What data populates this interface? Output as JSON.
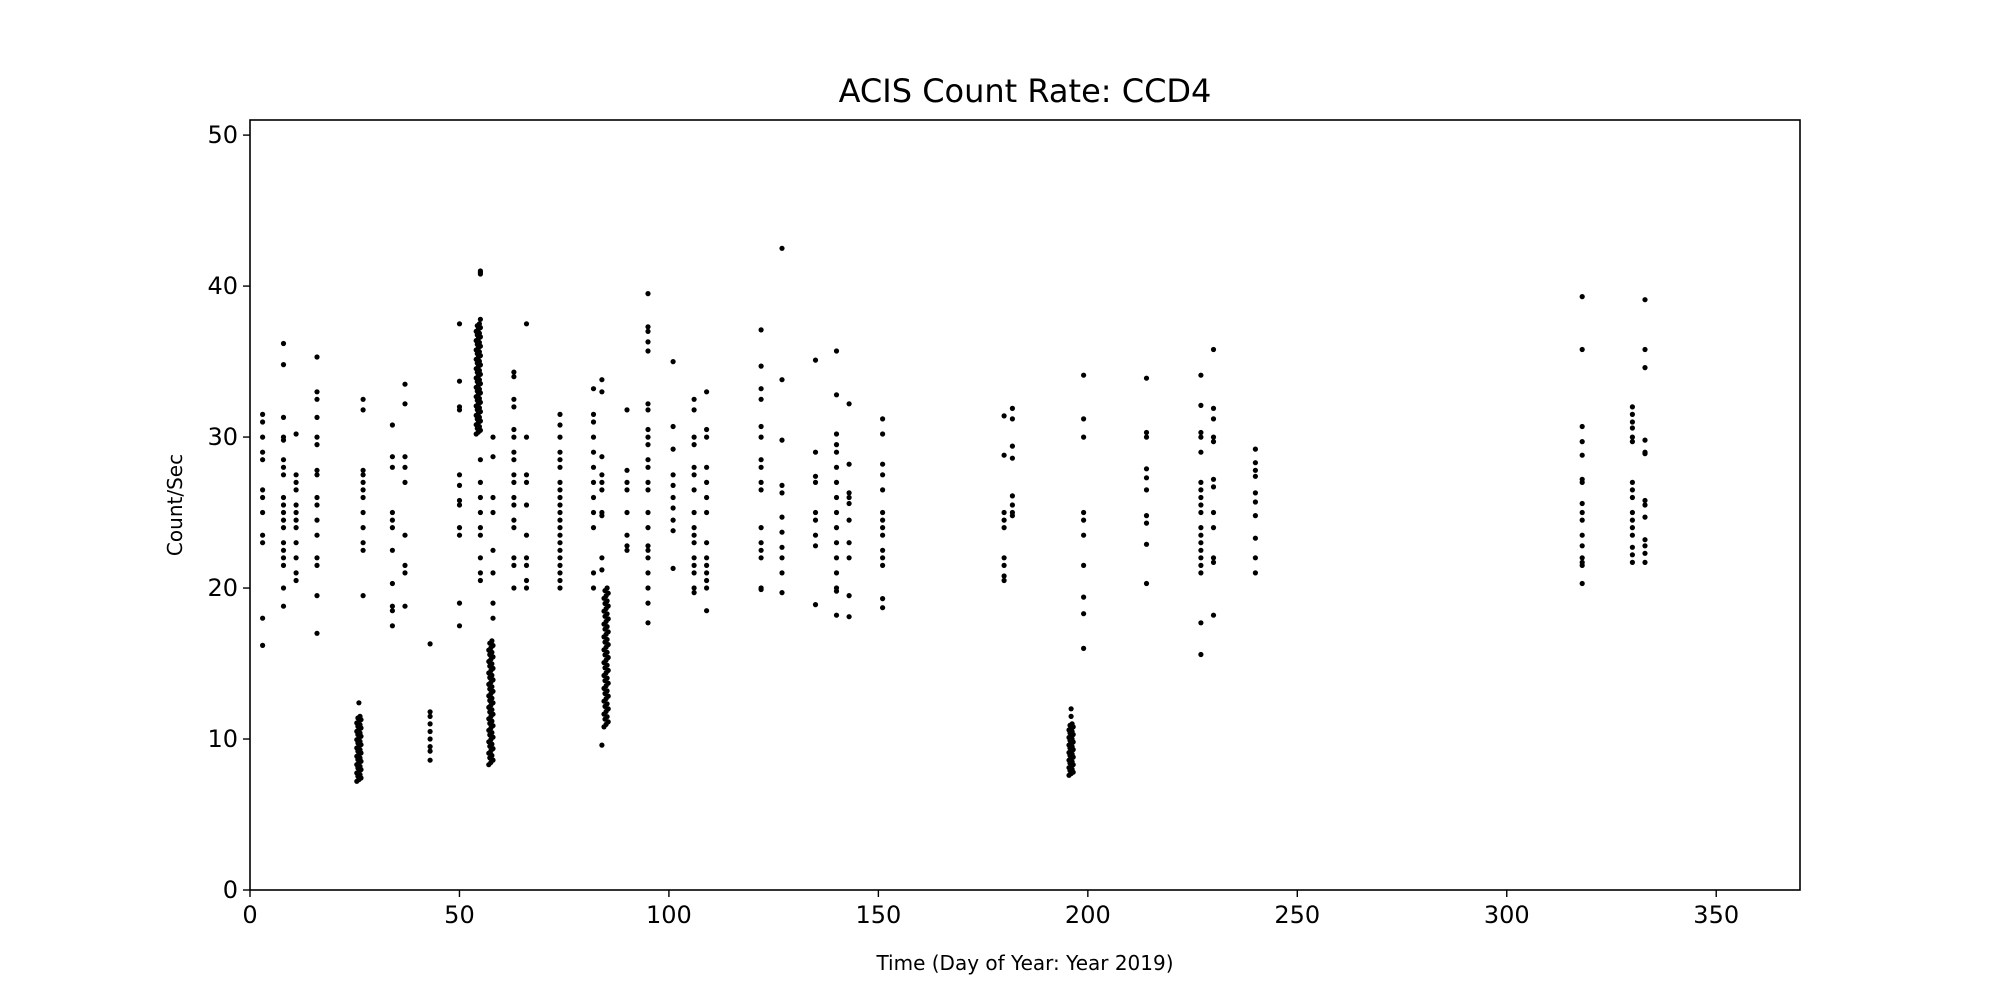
{
  "chart_data": {
    "type": "scatter",
    "title": "ACIS Count Rate: CCD4",
    "xlabel": "Time (Day of Year: Year 2019)",
    "ylabel": "Count/Sec",
    "xlim": [
      0,
      370
    ],
    "ylim": [
      0,
      51
    ],
    "xticks": [
      0,
      50,
      100,
      150,
      200,
      250,
      300,
      350
    ],
    "yticks": [
      0,
      10,
      20,
      30,
      40,
      50
    ],
    "grid": false,
    "marker_color": "#000000",
    "clusters": [
      {
        "x": 3,
        "y": [
          31.5,
          31,
          30,
          29,
          28.5,
          26.5,
          26,
          25,
          23.5,
          23,
          18,
          16.2
        ]
      },
      {
        "x": 8,
        "y": [
          36.2,
          34.8,
          31.3,
          30,
          29.8,
          28.5,
          28,
          27.5,
          26,
          25.5,
          25,
          24.5,
          24,
          23,
          22.5,
          22,
          21.5,
          20,
          18.8
        ]
      },
      {
        "x": 11,
        "y": [
          30.2,
          27.5,
          27,
          26.5,
          25.5,
          25,
          24.5,
          24,
          23,
          22,
          21,
          20.5
        ]
      },
      {
        "x": 16,
        "y": [
          35.3,
          33,
          32.5,
          31.3,
          30,
          29.5,
          27.8,
          27.5,
          26,
          25.5,
          24.5,
          23.5,
          22,
          21.5,
          19.5,
          17
        ]
      },
      {
        "x": 26,
        "y": [
          12.4
        ]
      },
      {
        "x": 27,
        "y": [
          32.5,
          31.8,
          27.8,
          27.5,
          27,
          26.5,
          26,
          25,
          24,
          23,
          22.5,
          19.5
        ]
      },
      {
        "x": 34,
        "y": [
          30.8,
          28.7,
          28,
          25,
          24.5,
          24,
          22.5,
          20.3,
          18.8,
          18.5,
          17.5
        ]
      },
      {
        "x": 37,
        "y": [
          33.5,
          32.2,
          28.7,
          28,
          27,
          23.5,
          21.5,
          21,
          18.8
        ]
      },
      {
        "x": 43,
        "y": [
          16.3,
          11.8,
          11.5,
          11,
          10.5,
          10,
          9.5,
          9.2,
          8.6
        ]
      },
      {
        "x": 50,
        "y": [
          37.5,
          33.7,
          32,
          31.8,
          27.5,
          26.8,
          25.8,
          25.5,
          24,
          23.5,
          19,
          17.5
        ]
      },
      {
        "x": 55,
        "y": [
          41,
          40.9,
          40.8,
          37.8,
          28.5,
          27,
          26,
          25,
          24,
          23.5,
          22,
          21,
          20.5
        ]
      },
      {
        "x": 58,
        "y": [
          30,
          28.7,
          26,
          25,
          22.5,
          21,
          19,
          18
        ]
      },
      {
        "x": 63,
        "y": [
          34.3,
          34,
          32.5,
          32,
          30.5,
          30,
          29,
          28.5,
          27.5,
          27,
          26,
          25.5,
          24.5,
          24,
          22,
          21.5,
          20
        ]
      },
      {
        "x": 66,
        "y": [
          37.5,
          30,
          27.5,
          27,
          25.5,
          23.5,
          22,
          21.5,
          20.5,
          20
        ]
      },
      {
        "x": 74,
        "y": [
          31.5,
          30.8,
          30,
          29,
          28.5,
          28,
          27,
          26.5,
          26,
          25.5,
          25,
          24.5,
          24,
          23.5,
          23,
          22.5,
          22,
          21.5,
          21,
          20.5,
          20
        ]
      },
      {
        "x": 82,
        "y": [
          33.2,
          31.5,
          31,
          30,
          29,
          28,
          27,
          26,
          25,
          24,
          21,
          20
        ]
      },
      {
        "x": 84,
        "y": [
          33.8,
          33,
          28.7,
          27.5,
          27,
          26.5,
          25,
          24.8,
          22,
          21.2,
          9.6
        ]
      },
      {
        "x": 90,
        "y": [
          31.8,
          27.8,
          27,
          26.5,
          25,
          23.5,
          22.8,
          22.5
        ]
      },
      {
        "x": 95,
        "y": [
          39.5,
          37.3,
          37,
          36.3,
          35.7,
          32.2,
          31.8,
          30.5,
          30,
          29.5,
          28.5,
          28,
          27,
          26.5,
          25,
          24,
          22.8,
          22.5,
          22,
          21,
          20,
          19,
          17.7
        ]
      },
      {
        "x": 101,
        "y": [
          35,
          30.7,
          29.2,
          27.5,
          26.8,
          26,
          25.3,
          24.5,
          23.8,
          21.3
        ]
      },
      {
        "x": 106,
        "y": [
          32.5,
          31.8,
          30,
          29.5,
          28,
          27.5,
          26.5,
          25,
          24,
          23.5,
          23,
          22,
          21.5,
          21,
          20,
          19.7
        ]
      },
      {
        "x": 109,
        "y": [
          33,
          30.5,
          30,
          28,
          27,
          26,
          25,
          23,
          22,
          21.5,
          21,
          20.5,
          20,
          18.5
        ]
      },
      {
        "x": 122,
        "y": [
          37.1,
          34.7,
          33.2,
          32.5,
          30.7,
          30,
          28.5,
          28,
          27,
          26.5,
          24,
          23,
          22.5,
          22,
          20,
          19.9
        ]
      },
      {
        "x": 127,
        "y": [
          42.5,
          33.8,
          29.8,
          26.8,
          26.3,
          24.7,
          23.7,
          22.7,
          22,
          21,
          19.7
        ]
      },
      {
        "x": 135,
        "y": [
          35.1,
          29,
          27.4,
          27,
          25,
          24.5,
          23.5,
          22.8,
          18.9
        ]
      },
      {
        "x": 140,
        "y": [
          35.7,
          32.8,
          30.2,
          29.5,
          29,
          28,
          27,
          26,
          25,
          24,
          23,
          22,
          21,
          20,
          19.8,
          18.2
        ]
      },
      {
        "x": 143,
        "y": [
          32.2,
          28.2,
          26.3,
          26,
          25.6,
          24.5,
          23,
          22,
          19.5,
          18.1
        ]
      },
      {
        "x": 151,
        "y": [
          31.2,
          30.2,
          28.2,
          27.5,
          26.5,
          25,
          24.5,
          24,
          23.5,
          22.5,
          22,
          21.5,
          19.3,
          18.7
        ]
      },
      {
        "x": 180,
        "y": [
          31.4,
          28.8,
          25,
          24.5,
          24,
          22,
          21.5,
          20.8,
          20.5
        ]
      },
      {
        "x": 182,
        "y": [
          31.9,
          31.2,
          29.4,
          28.6,
          26.1,
          25.5,
          25,
          24.8
        ]
      },
      {
        "x": 196,
        "y": [
          12,
          11.5
        ]
      },
      {
        "x": 199,
        "y": [
          34.1,
          31.2,
          30,
          25,
          24.5,
          23.5,
          21.5,
          19.4,
          18.3,
          16
        ]
      },
      {
        "x": 214,
        "y": [
          33.9,
          30.3,
          30,
          27.9,
          27.3,
          26.5,
          24.8,
          24.3,
          22.9,
          20.3
        ]
      },
      {
        "x": 227,
        "y": [
          34.1,
          32.1,
          30.3,
          30,
          29,
          27,
          26.5,
          26,
          25.5,
          25,
          24,
          23.5,
          23,
          22.5,
          22,
          21.5,
          21,
          17.7,
          15.6
        ]
      },
      {
        "x": 230,
        "y": [
          35.8,
          31.9,
          31.2,
          30,
          29.7,
          27.2,
          26.7,
          25,
          24,
          22,
          21.7,
          18.2
        ]
      },
      {
        "x": 240,
        "y": [
          29.2,
          28.3,
          27.8,
          27.4,
          26.3,
          25.7,
          24.8,
          23.3,
          22,
          21
        ]
      },
      {
        "x": 318,
        "y": [
          39.3,
          35.8,
          30.7,
          29.7,
          28.8,
          27.2,
          27,
          25.6,
          25,
          24.5,
          23.5,
          22.8,
          22,
          21.7,
          21.5,
          20.3
        ]
      },
      {
        "x": 330,
        "y": [
          32,
          31.5,
          31,
          30.6,
          30,
          29.7,
          27,
          26.5,
          26,
          25,
          24.5,
          24,
          23.5,
          22.7,
          22.2,
          21.7
        ]
      },
      {
        "x": 333,
        "y": [
          39.1,
          35.8,
          34.6,
          29.8,
          29,
          28.9,
          25.8,
          25.5,
          24.7,
          23.2,
          22.8,
          22.3,
          21.7
        ]
      }
    ],
    "dense_bands": [
      {
        "x": 26,
        "ymin": 7.2,
        "ymax": 11.5,
        "n": 40
      },
      {
        "x": 54.5,
        "ymin": 30.2,
        "ymax": 37.5,
        "n": 60
      },
      {
        "x": 57.5,
        "ymin": 8.3,
        "ymax": 16.5,
        "n": 55
      },
      {
        "x": 85,
        "ymin": 10.8,
        "ymax": 20,
        "n": 55
      },
      {
        "x": 196,
        "ymin": 7.6,
        "ymax": 11,
        "n": 35
      }
    ]
  }
}
